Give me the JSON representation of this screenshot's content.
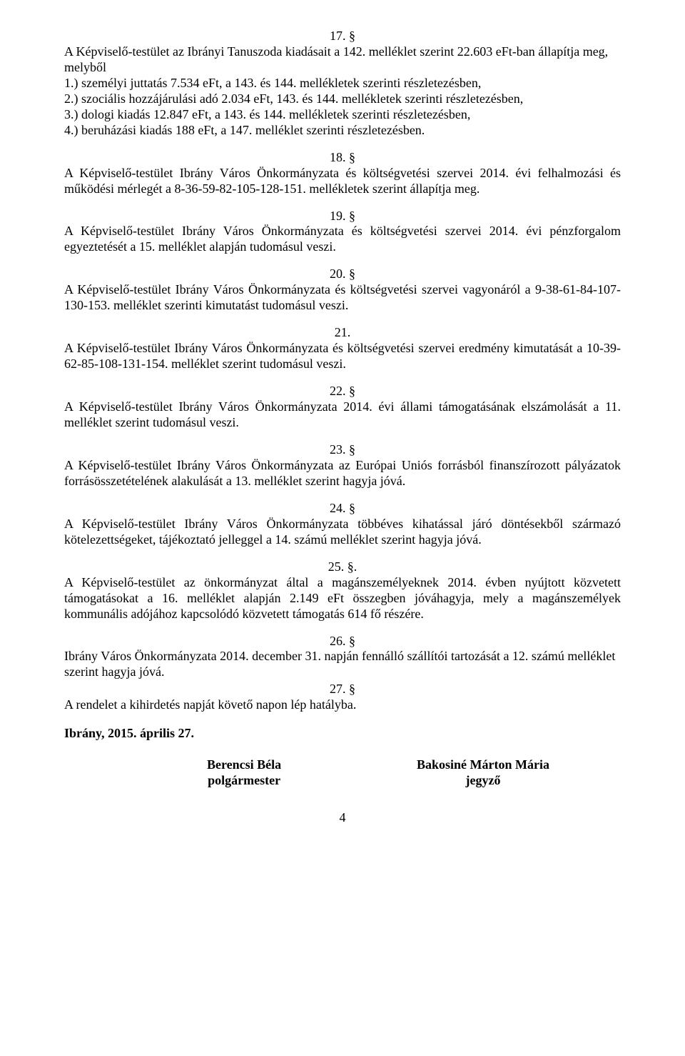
{
  "s17": {
    "num": "17. §",
    "text": "A Képviselő-testület az Ibrányi Tanuszoda kiadásait a 142. melléklet szerint 22.603 eFt-ban állapítja meg, melyből\n1.) személyi juttatás 7.534 eFt, a 143. és 144. mellékletek szerinti részletezésben,\n2.) szociális hozzájárulási adó 2.034 eFt, 143. és 144. mellékletek szerinti részletezésben,\n3.) dologi kiadás 12.847 eFt, a 143. és 144. mellékletek szerinti részletezésben,\n4.) beruházási kiadás 188 eFt, a 147. melléklet szerinti részletezésben."
  },
  "s18": {
    "num": "18. §",
    "text": "A Képviselő-testület Ibrány Város Önkormányzata és költségvetési szervei 2014. évi felhalmozási és működési mérlegét a 8-36-59-82-105-128-151. mellékletek szerint állapítja meg."
  },
  "s19": {
    "num": "19. §",
    "text": "A Képviselő-testület Ibrány Város Önkormányzata és költségvetési szervei 2014. évi pénzforgalom egyeztetését a 15. melléklet alapján tudomásul veszi."
  },
  "s20": {
    "num": "20. §",
    "text": "A Képviselő-testület Ibrány Város Önkormányzata és költségvetési szervei vagyonáról a 9-38-61-84-107-130-153. melléklet szerinti kimutatást tudomásul veszi."
  },
  "s21": {
    "num": "21.",
    "text": "A Képviselő-testület Ibrány Város Önkormányzata és költségvetési szervei eredmény kimutatását a 10-39-62-85-108-131-154. melléklet szerint tudomásul veszi."
  },
  "s22": {
    "num": "22. §",
    "text": "A Képviselő-testület Ibrány Város Önkormányzata 2014. évi állami támogatásának elszámolását a 11. melléklet szerint tudomásul veszi."
  },
  "s23": {
    "num": "23. §",
    "text": "A Képviselő-testület Ibrány Város Önkormányzata az Európai Uniós forrásból finanszírozott pályázatok forrásösszetételének alakulását a 13. melléklet szerint hagyja jóvá."
  },
  "s24": {
    "num": "24. §",
    "text": "A Képviselő-testület Ibrány Város Önkormányzata többéves kihatással járó döntésekből származó kötelezettségeket, tájékoztató jelleggel a 14. számú melléklet szerint hagyja jóvá."
  },
  "s25": {
    "num": "25. §.",
    "text": "A Képviselő-testület az önkormányzat által a magánszemélyeknek 2014. évben nyújtott közvetett támogatásokat a 16. melléklet alapján 2.149 eFt összegben jóváhagyja, mely a magánszemélyek kommunális adójához kapcsolódó közvetett támogatás 614 fő részére."
  },
  "s26": {
    "num": "26. §",
    "text": "Ibrány Város Önkormányzata 2014. december 31. napján fennálló szállítói tartozását a 12. számú melléklet szerint hagyja jóvá."
  },
  "s27": {
    "num": "27. §",
    "text": "A rendelet a kihirdetés napját követő napon lép hatályba."
  },
  "date": "Ibrány, 2015. április 27.",
  "sig_left_name": "Berencsi Béla",
  "sig_left_title": "polgármester",
  "sig_right_name": "Bakosiné Márton Mária",
  "sig_right_title": "jegyző",
  "page_number": "4"
}
